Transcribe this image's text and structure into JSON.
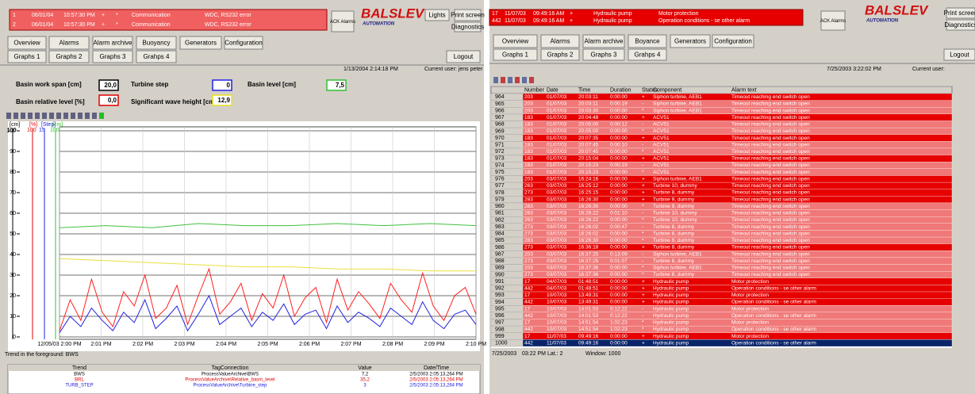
{
  "left": {
    "alarms": [
      [
        "1",
        "06/01/04",
        "10:57:30 PM",
        "+",
        "*",
        "Communication",
        "WDC, RS232 error"
      ],
      [
        "2",
        "06/01/04",
        "10:57:30 PM",
        "+",
        "*",
        "Communication",
        "WDC, RS232 error"
      ]
    ],
    "ack": "ACK Alarms",
    "brand": "BALSLEV",
    "brand_sub": "AUTOMATION",
    "lights": "Lights",
    "print": "Print screen",
    "diag": "Diagnostics",
    "nav": [
      "Overview",
      "Alarms",
      "Alarm archive",
      "Buoyancy",
      "Generators",
      "Configuration"
    ],
    "graphs": [
      "Graphs 1",
      "Graphs 2",
      "Graphs 3",
      "Grahps 4"
    ],
    "logout": "Logout",
    "datetime": "1/13/2004 2:14:18 PM",
    "user": "Current user: jens peter",
    "params": [
      {
        "label": "Basin work span [cm]",
        "value": "20,0",
        "color": "#000000"
      },
      {
        "label": "Basin relative level [%]",
        "value": "0,0",
        "color": "#e00000"
      },
      {
        "label": "Turbine step",
        "value": "0",
        "color": "#2020e0"
      },
      {
        "label": "Significant wave height [cm]",
        "value": "12,9",
        "color": "#e8e020"
      },
      {
        "label": "Basin level [cm]",
        "value": "7,5",
        "color": "#30c030"
      }
    ],
    "axes": [
      {
        "unit": "[cm]",
        "top": "100",
        "color": "#000000"
      },
      {
        "unit": "[%]",
        "top": "100",
        "color": "#e00000"
      },
      {
        "unit": "[Step]",
        "top": "15",
        "color": "#2020e0"
      },
      {
        "unit": "[cm]",
        "top": "100",
        "color": "#30c030"
      }
    ],
    "foreground": "Trend in the foreground: BWS",
    "table": {
      "header": [
        "Trend",
        "TagConnection",
        "Value",
        "Date/Time"
      ],
      "rows": [
        {
          "cells": [
            "BWS",
            "ProcessValueArchive\\BWS",
            "7,2",
            "2/5/2003 2:05:13,264 PM"
          ],
          "color": "#000000"
        },
        {
          "cells": [
            "BRL",
            "ProcessValueArchive\\Relative_basin_level",
            "35,2",
            "2/5/2003 2:05:13,264 PM"
          ],
          "color": "#e00000"
        },
        {
          "cells": [
            "TURB_STEP",
            "ProcessValueArchive\\Turbine_step",
            "3",
            "2/5/2003 2:05:13,264 PM"
          ],
          "color": "#2020e0"
        }
      ]
    }
  },
  "trend": {
    "type": "line",
    "xticks": [
      "12/05/03 2:00 PM",
      "2:01 PM",
      "2:02 PM",
      "2:03 PM",
      "2:04 PM",
      "2:05 PM",
      "2:06 PM",
      "2:07 PM",
      "2:08 PM",
      "2:09 PM",
      "2:10 PM"
    ],
    "ylim": [
      0,
      100
    ],
    "yticks": [
      0,
      10,
      20,
      30,
      40,
      50,
      60,
      70,
      80,
      90,
      100
    ],
    "grid": true,
    "series": [
      {
        "name": "BRL",
        "color": "#ff2020",
        "values": [
          3,
          18,
          8,
          28,
          12,
          5,
          22,
          15,
          30,
          9,
          14,
          25,
          6,
          20,
          33,
          11,
          17,
          26,
          8,
          21,
          14,
          30,
          10,
          19,
          24,
          7,
          28,
          13,
          22,
          16,
          9,
          26,
          18,
          12,
          31,
          15,
          8,
          20,
          24,
          11
        ]
      },
      {
        "name": "BWS",
        "color": "#2020e0",
        "values": [
          2,
          10,
          5,
          14,
          8,
          3,
          12,
          7,
          18,
          4,
          9,
          15,
          3,
          11,
          20,
          6,
          10,
          14,
          5,
          12,
          8,
          16,
          6,
          11,
          13,
          4,
          15,
          7,
          12,
          9,
          5,
          14,
          10,
          6,
          17,
          8,
          4,
          11,
          13,
          6
        ]
      },
      {
        "name": "BL",
        "color": "#40c040",
        "values": [
          53,
          54,
          53,
          55,
          54,
          54,
          55,
          54,
          55,
          54
        ]
      },
      {
        "name": "SWH",
        "color": "#e8e040",
        "values": [
          38,
          37,
          36,
          35,
          34,
          34,
          33,
          33,
          32,
          32
        ]
      }
    ]
  },
  "right": {
    "alarms": [
      [
        "17",
        "11/07/03",
        "09:49:16 AM",
        "+",
        "Hydraulic pump",
        "Motor protection"
      ],
      [
        "442",
        "11/07/03",
        "09:49:16 AM",
        "+",
        "Hydraulic pump",
        "Operation conditions - se other alarm"
      ]
    ],
    "ack": "ACK Alarms",
    "brand": "BALSLEV",
    "brand_sub": "AUTOMATION",
    "print": "Print screen",
    "diag": "Diagnostics",
    "nav": [
      "Overview",
      "Alarms",
      "Alarm archive",
      "Boyance",
      "Generators",
      "Configuration"
    ],
    "graphs": [
      "Graphs 1",
      "Graphs 2",
      "Graphs 3",
      "Grahps 4"
    ],
    "logout": "Logout",
    "datetime": "7/25/2003 3:22:02 PM",
    "user": "Current user:",
    "header": [
      "Number",
      "Date",
      "Time",
      "Duration",
      "Status",
      "Component",
      "Alarm text"
    ],
    "rows": [
      {
        "id": "964",
        "cells": [
          "203",
          "01/07/03",
          "20:03:11",
          "0:00:00",
          "+",
          "Siphon turbine, AEB1",
          "Timeout reaching end switch open"
        ],
        "color": "#e60000"
      },
      {
        "id": "965",
        "cells": [
          "203",
          "01/07/03",
          "20:03:11",
          "0:00:19",
          "-",
          "Siphon turbine, AEB1",
          "Timeout reaching end switch open"
        ],
        "color": "#f07878"
      },
      {
        "id": "966",
        "cells": [
          "203",
          "01/07/03",
          "20:03:30",
          "0:00:00",
          "*",
          "Siphon turbine, AEB1",
          "Timeout reaching end switch open"
        ],
        "color": "#f07878"
      },
      {
        "id": "967",
        "cells": [
          "183",
          "01/07/03",
          "20:04:48",
          "0:00:00",
          "+",
          "ACV51",
          "Timeout reaching end switch open"
        ],
        "color": "#e60000"
      },
      {
        "id": "968",
        "cells": [
          "183",
          "01/07/03",
          "20:05:00",
          "0:00:12",
          "-",
          "ACV51",
          "Timeout reaching end switch open"
        ],
        "color": "#f07878"
      },
      {
        "id": "969",
        "cells": [
          "183",
          "01/07/03",
          "20:05:00",
          "0:00:00",
          "*",
          "ACV51",
          "Timeout reaching end switch open"
        ],
        "color": "#f07878"
      },
      {
        "id": "970",
        "cells": [
          "183",
          "01/07/03",
          "20:07:35",
          "0:00:00",
          "+",
          "ACV51",
          "Timeout reaching end switch open"
        ],
        "color": "#e60000"
      },
      {
        "id": "971",
        "cells": [
          "183",
          "01/07/03",
          "20:07:45",
          "0:00:10",
          "-",
          "ACV51",
          "Timeout reaching end switch open"
        ],
        "color": "#f07878"
      },
      {
        "id": "972",
        "cells": [
          "183",
          "01/07/03",
          "20:07:45",
          "0:00:00",
          "*",
          "ACV51",
          "Timeout reaching end switch open"
        ],
        "color": "#f07878"
      },
      {
        "id": "973",
        "cells": [
          "183",
          "01/07/03",
          "20:15:04",
          "0:00:00",
          "+",
          "ACV51",
          "Timeout reaching end switch open"
        ],
        "color": "#e60000"
      },
      {
        "id": "974",
        "cells": [
          "183",
          "01/07/03",
          "20:15:23",
          "0:00:19",
          "-",
          "ACV51",
          "Timeout reaching end switch open"
        ],
        "color": "#f07878"
      },
      {
        "id": "975",
        "cells": [
          "183",
          "01/07/03",
          "20:15:23",
          "0:00:00",
          "*",
          "ACV51",
          "Timeout reaching end switch open"
        ],
        "color": "#f07878"
      },
      {
        "id": "976",
        "cells": [
          "203",
          "03/07/03",
          "16:24:16",
          "0:00:00",
          "+",
          "Siphon turbine, AEB1",
          "Timeout reaching end switch open"
        ],
        "color": "#e60000"
      },
      {
        "id": "977",
        "cells": [
          "263",
          "03/07/03",
          "16:25:12",
          "0:00:00",
          "+",
          "Turbine 10, dummy",
          "Timeout reaching end switch open"
        ],
        "color": "#e60000"
      },
      {
        "id": "978",
        "cells": [
          "273",
          "03/07/03",
          "16:25:15",
          "0:00:00",
          "+",
          "Turbine 8, dummy",
          "Timeout reaching end switch open"
        ],
        "color": "#e60000"
      },
      {
        "id": "979",
        "cells": [
          "283",
          "03/07/03",
          "16:26:30",
          "0:00:00",
          "+",
          "Turbine 9, dummy",
          "Timeout reaching end switch open"
        ],
        "color": "#e60000"
      },
      {
        "id": "980",
        "cells": [
          "283",
          "03/07/03",
          "16:26:30",
          "0:00:00",
          "*",
          "Turbine 9, dummy",
          "Timeout reaching end switch open"
        ],
        "color": "#f07878"
      },
      {
        "id": "981",
        "cells": [
          "263",
          "03/07/03",
          "16:26:22",
          "0:01:10",
          "-",
          "Turbine 10, dummy",
          "Timeout reaching end switch open"
        ],
        "color": "#f07878"
      },
      {
        "id": "982",
        "cells": [
          "263",
          "03/07/03",
          "16:26:22",
          "0:00:00",
          "*",
          "Turbine 10, dummy",
          "Timeout reaching end switch open"
        ],
        "color": "#f07878"
      },
      {
        "id": "983",
        "cells": [
          "273",
          "03/07/03",
          "16:26:02",
          "0:00:47",
          "-",
          "Turbine 8, dummy",
          "Timeout reaching end switch open"
        ],
        "color": "#f07878"
      },
      {
        "id": "984",
        "cells": [
          "273",
          "03/07/03",
          "16:26:02",
          "0:00:00",
          "*",
          "Turbine 8, dummy",
          "Timeout reaching end switch open"
        ],
        "color": "#f07878"
      },
      {
        "id": "985",
        "cells": [
          "283",
          "03/07/03",
          "16:26:30",
          "0:00:00",
          "*",
          "Turbine 9, dummy",
          "Timeout reaching end switch open"
        ],
        "color": "#f07878"
      },
      {
        "id": "986",
        "cells": [
          "273",
          "03/07/03",
          "16:36:18",
          "0:00:00",
          "+",
          "Turbine 8, dummy",
          "Timeout reaching end switch open"
        ],
        "color": "#e60000"
      },
      {
        "id": "987",
        "cells": [
          "203",
          "03/07/03",
          "16:37:25",
          "0:13:09",
          "-",
          "Siphon turbine, AEB1",
          "Timeout reaching end switch open"
        ],
        "color": "#f07878"
      },
      {
        "id": "988",
        "cells": [
          "273",
          "03/07/03",
          "16:37:25",
          "0:01:07",
          "-",
          "Turbine 8, dummy",
          "Timeout reaching end switch open"
        ],
        "color": "#f07878"
      },
      {
        "id": "989",
        "cells": [
          "203",
          "03/07/03",
          "16:37:36",
          "0:00:00",
          "*",
          "Siphon turbine, AEB1",
          "Timeout reaching end switch open"
        ],
        "color": "#f07878"
      },
      {
        "id": "990",
        "cells": [
          "273",
          "03/07/03",
          "16:37:36",
          "0:00:00",
          "*",
          "Turbine 8, dummy",
          "Timeout reaching end switch open"
        ],
        "color": "#f07878"
      },
      {
        "id": "991",
        "cells": [
          "17",
          "04/07/03",
          "01:48:51",
          "0:00:00",
          "+",
          "Hydraulic pump",
          "Motor protection"
        ],
        "color": "#e60000"
      },
      {
        "id": "992",
        "cells": [
          "442",
          "04/07/03",
          "01:48:51",
          "0:00:00",
          "+",
          "Hydraulic pump",
          "Operation conditions - se other alarm"
        ],
        "color": "#e60000"
      },
      {
        "id": "993",
        "cells": [
          "17",
          "10/07/03",
          "13:49:31",
          "0:00:00",
          "+",
          "Hydraulic pump",
          "Motor protection"
        ],
        "color": "#e60000"
      },
      {
        "id": "994",
        "cells": [
          "442",
          "10/07/03",
          "13:49:31",
          "0:00:00",
          "+",
          "Hydraulic pump",
          "Operation conditions - se other alarm"
        ],
        "color": "#e60000"
      },
      {
        "id": "995",
        "cells": [
          "17",
          "10/07/03",
          "14:01:53",
          "0:12:22",
          "-",
          "Hydraulic pump",
          "Motor protection"
        ],
        "color": "#f07878"
      },
      {
        "id": "996",
        "cells": [
          "442",
          "10/07/03",
          "14:01:53",
          "0:12:22",
          "-",
          "Hydraulic pump",
          "Operation conditions - se other alarm"
        ],
        "color": "#f07878"
      },
      {
        "id": "997",
        "cells": [
          "17",
          "10/07/03",
          "14:51:54",
          "1:02:23",
          "*",
          "Hydraulic pump",
          "Motor protection"
        ],
        "color": "#f07878"
      },
      {
        "id": "998",
        "cells": [
          "442",
          "10/07/03",
          "14:51:54",
          "1:02:23",
          "*",
          "Hydraulic pump",
          "Operation conditions - se other alarm"
        ],
        "color": "#f07878"
      },
      {
        "id": "999",
        "cells": [
          "17",
          "11/07/03",
          "09:49:16",
          "0:00:00",
          "+",
          "Hydraulic pump",
          "Motor protection"
        ],
        "color": "#e60000"
      },
      {
        "id": "1000",
        "cells": [
          "442",
          "11/07/03",
          "09:49:16",
          "0:00:00",
          "+",
          "Hydraulic pump",
          "Operation conditions - se other alarm"
        ],
        "color": "#0a246a"
      }
    ],
    "footer": [
      "7/25/2003",
      "03:22 PM",
      "Lat.: 2",
      "Window: 1000"
    ]
  }
}
